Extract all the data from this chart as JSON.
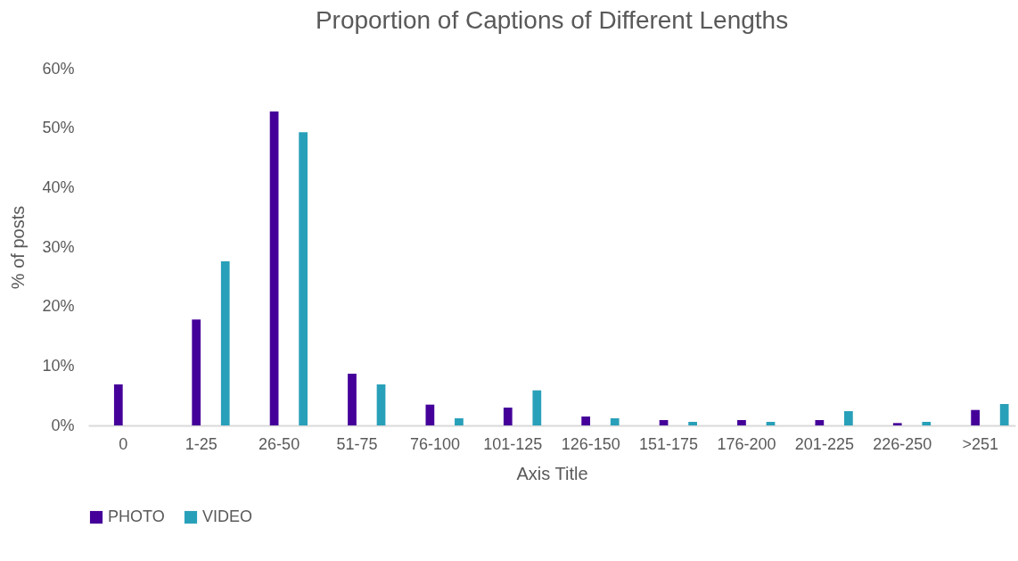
{
  "chart_data": {
    "type": "bar",
    "title": "Proportion of Captions of Different Lengths",
    "xlabel": "Axis Title",
    "ylabel": "% of posts",
    "categories": [
      "0",
      "1-25",
      "26-50",
      "51-75",
      "76-100",
      "101-125",
      "126-150",
      "151-175",
      "176-200",
      "201-225",
      "226-250",
      ">251"
    ],
    "series": [
      {
        "name": "PHOTO",
        "color": "#440099",
        "values": [
          6.9,
          17.8,
          52.8,
          8.7,
          3.5,
          3.0,
          1.5,
          0.9,
          0.9,
          0.9,
          0.4,
          2.6
        ]
      },
      {
        "name": "VIDEO",
        "color": "#29a0b9",
        "values": [
          0,
          27.6,
          49.3,
          6.9,
          1.2,
          5.9,
          1.2,
          0.6,
          0.6,
          2.4,
          0.6,
          3.6
        ]
      }
    ],
    "ylim": [
      0,
      60
    ],
    "yticks": [
      {
        "value": 0,
        "label": "0%"
      },
      {
        "value": 10,
        "label": "10%"
      },
      {
        "value": 20,
        "label": "20%"
      },
      {
        "value": 30,
        "label": "30%"
      },
      {
        "value": 40,
        "label": "40%"
      },
      {
        "value": 50,
        "label": "50%"
      },
      {
        "value": 60,
        "label": "60%"
      }
    ],
    "grid": false,
    "legend": "bottom"
  }
}
